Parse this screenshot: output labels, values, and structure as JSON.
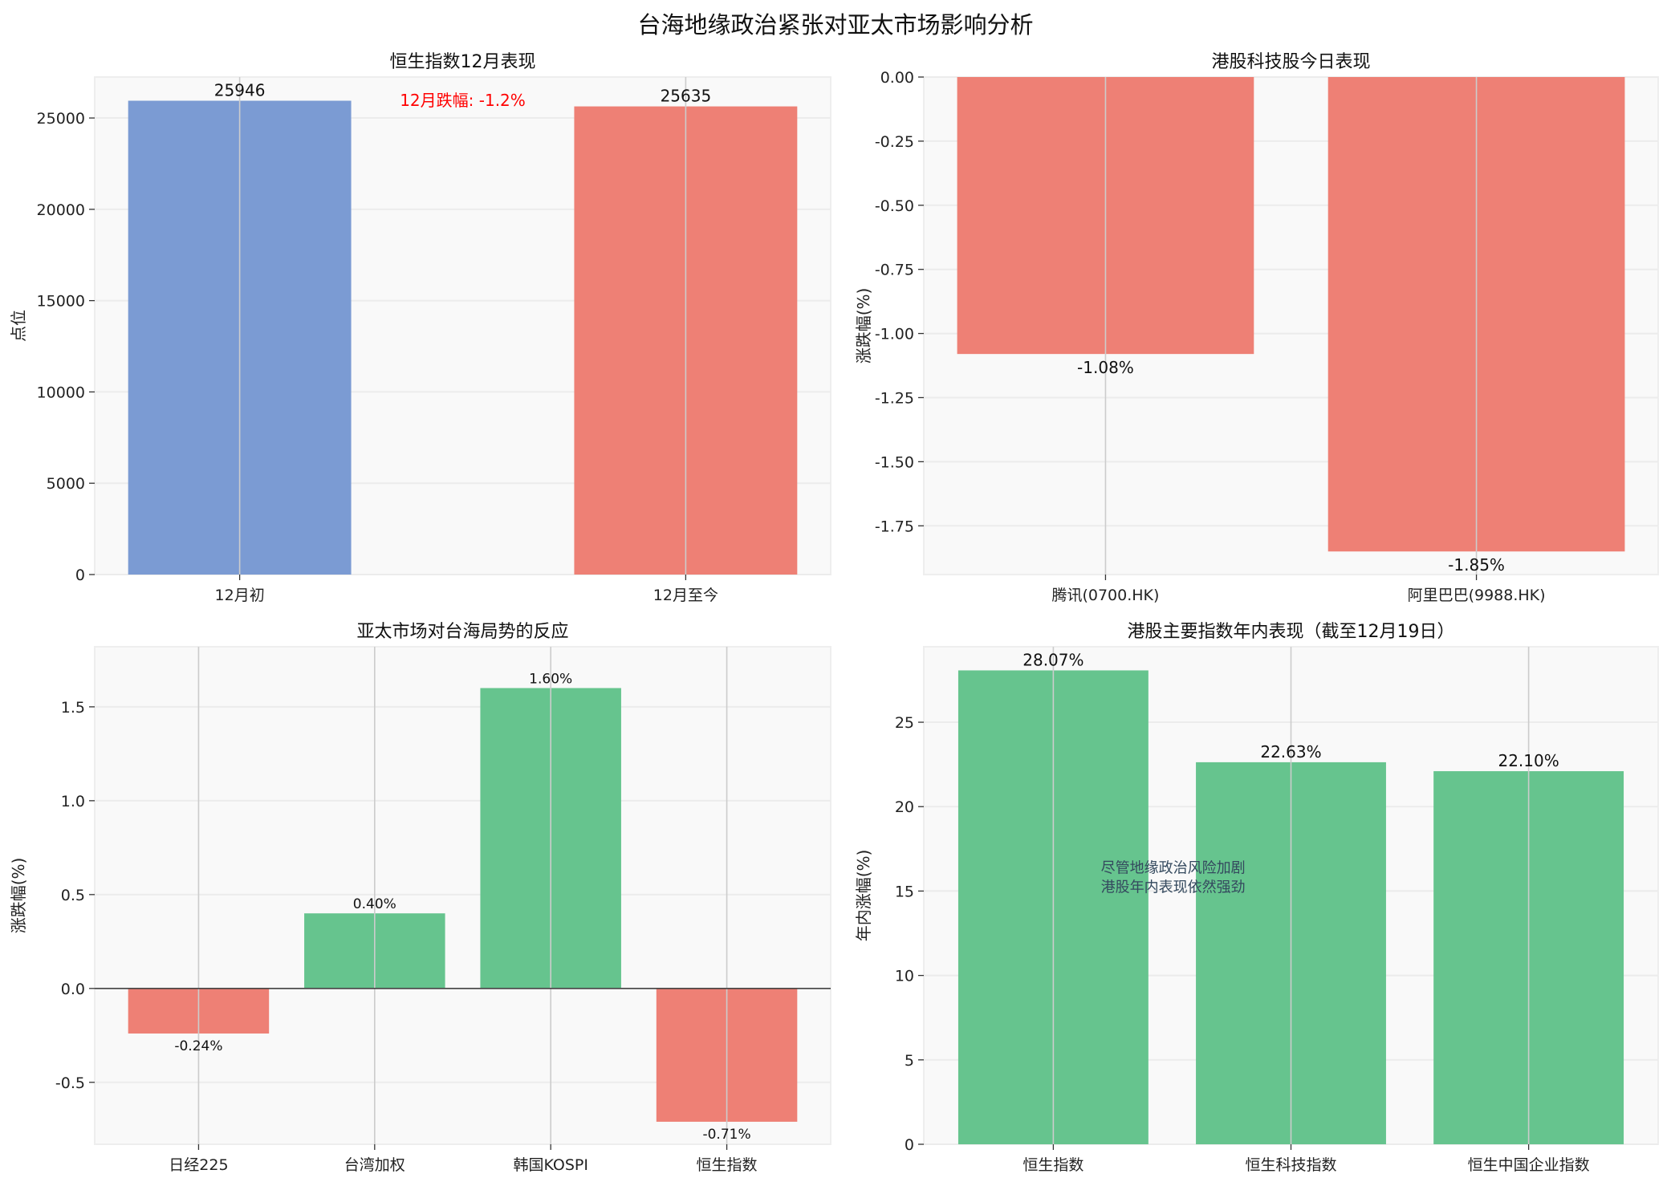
{
  "figure": {
    "title": "台海地缘政治紧张对亚太市场影响分析"
  },
  "chart_data": [
    {
      "type": "bar",
      "title": "恒生指数12月表现",
      "xlabel": "",
      "ylabel": "点位",
      "categories": [
        "12月初",
        "12月至今"
      ],
      "values": [
        25946,
        25635
      ],
      "value_labels": [
        "25946",
        "25635"
      ],
      "colors": [
        "#7b9bd3",
        "#ee8075"
      ],
      "ylim": [
        0,
        27243
      ],
      "yticks": [
        0,
        5000,
        10000,
        15000,
        20000,
        25000
      ],
      "ytick_labels": [
        "0",
        "5000",
        "10000",
        "15000",
        "20000",
        "25000"
      ],
      "annotation": {
        "text": "12月跌幅: -1.2%",
        "color": "#ff0000"
      },
      "grid": true
    },
    {
      "type": "bar",
      "title": "港股科技股今日表现",
      "xlabel": "",
      "ylabel": "涨跌幅(%)",
      "categories": [
        "腾讯(0700.HK)",
        "阿里巴巴(9988.HK)"
      ],
      "values": [
        -1.08,
        -1.85
      ],
      "value_labels": [
        "-1.08%",
        "-1.85%"
      ],
      "colors": [
        "#ee8075",
        "#ee8075"
      ],
      "ylim": [
        -1.94,
        0
      ],
      "yticks": [
        0,
        -0.25,
        -0.5,
        -0.75,
        -1.0,
        -1.25,
        -1.5,
        -1.75
      ],
      "ytick_labels": [
        "0.00",
        "-0.25",
        "-0.50",
        "-0.75",
        "-1.00",
        "-1.25",
        "-1.50",
        "-1.75"
      ],
      "grid": true
    },
    {
      "type": "bar",
      "title": "亚太市场对台海局势的反应",
      "xlabel": "",
      "ylabel": "涨跌幅(%)",
      "categories": [
        "日经225",
        "台湾加权",
        "韩国KOSPI",
        "恒生指数"
      ],
      "values": [
        -0.24,
        0.4,
        1.6,
        -0.71
      ],
      "value_labels": [
        "-0.24%",
        "0.40%",
        "1.60%",
        "-0.71%"
      ],
      "colors": [
        "#ee8075",
        "#66c48e",
        "#66c48e",
        "#ee8075"
      ],
      "ylim": [
        -0.83,
        1.82
      ],
      "yticks": [
        -0.5,
        0.0,
        0.5,
        1.0,
        1.5
      ],
      "ytick_labels": [
        "-0.5",
        "0.0",
        "0.5",
        "1.0",
        "1.5"
      ],
      "zero_line": true,
      "grid": true
    },
    {
      "type": "bar",
      "title": "港股主要指数年内表现（截至12月19日）",
      "xlabel": "",
      "ylabel": "年内涨幅(%)",
      "categories": [
        "恒生指数",
        "恒生科技指数",
        "恒生中国企业指数"
      ],
      "values": [
        28.07,
        22.63,
        22.1
      ],
      "value_labels": [
        "28.07%",
        "22.63%",
        "22.10%"
      ],
      "colors": [
        "#66c48e",
        "#66c48e",
        "#66c48e"
      ],
      "ylim": [
        0,
        29.47
      ],
      "yticks": [
        0,
        5,
        10,
        15,
        20,
        25
      ],
      "ytick_labels": [
        "0",
        "5",
        "10",
        "15",
        "20",
        "25"
      ],
      "annotation": {
        "lines": [
          "尽管地缘政治风险加剧",
          "港股年内表现依然强劲"
        ],
        "color": "#34495e"
      },
      "grid": true
    }
  ]
}
